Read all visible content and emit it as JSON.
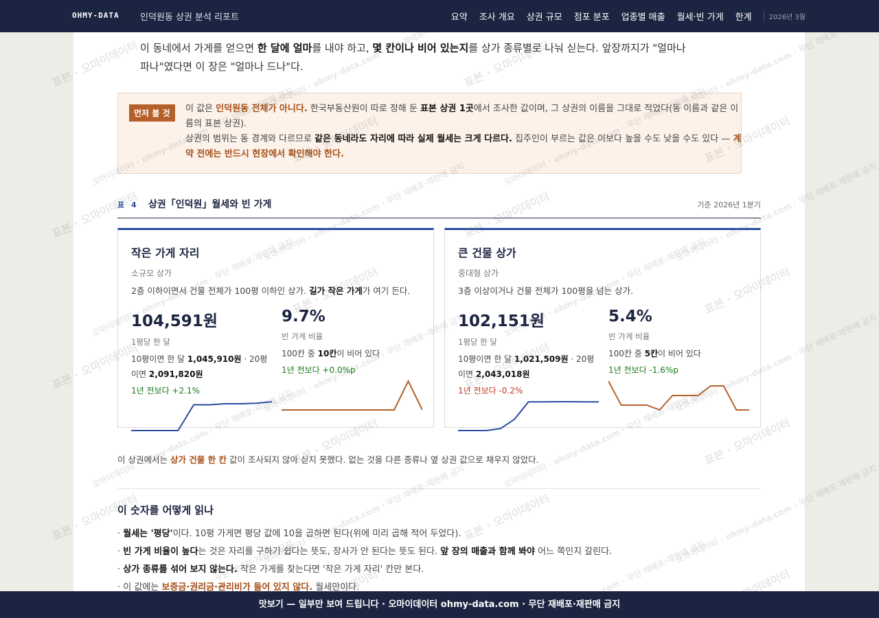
{
  "nav": {
    "brand": "OHMY-DATA",
    "subtitle": "인덕원동 상권 분석 리포트",
    "items": [
      "요약",
      "조사 개요",
      "상권 규모",
      "점포 분포",
      "업종별 매출",
      "월세·빈 가게",
      "한계"
    ],
    "date": "2026년 3월"
  },
  "intro": [
    "이 동네에서 가게를 얻으면 ",
    "한 달에 얼마",
    "를 내야 하고, ",
    "몇 칸이나 비어 있는지",
    "를 상가 종류별로 나눠 싣는다. 앞장까지가 \"얼마나 파나\"였다면 이 장은 \"얼마나 드나\"다."
  ],
  "note": {
    "badge": "먼저 볼 것",
    "p1": [
      "이 값은 ",
      "인덕원동 전체가 아니다.",
      " 한국부동산원이 따로 정해 둔 ",
      "표본 상권 1곳",
      "에서 조사한 값이며, 그 상권의 이름을 그대로 적었다(동 이름과 같은 이름의 표본 상권)."
    ],
    "p2": [
      "상권의 범위는 동 경계와 다르므로 ",
      "같은 동네라도 자리에 따라 실제 월세는 크게 다르다.",
      " 집주인이 부르는 값은 이보다 높을 수도 낮을 수도 있다 — ",
      "계약 전에는 반드시 현장에서 확인해야 한다."
    ]
  },
  "table": {
    "label": "표 4",
    "title": "상권「인덕원」월세와 빈 가게",
    "basis": "기준 2026년 1분기"
  },
  "cards": [
    {
      "title": "작은 가게 자리",
      "sub": "소규모 상가",
      "desc": [
        "2층 이하이면서 건물 전체가 100평 이하인 상가. ",
        "길가 작은 가게",
        "가 여기 든다."
      ],
      "rent": {
        "value": "104,591원",
        "label": "1평당 한 달",
        "detail": [
          "10평이면 한 달 ",
          "1,045,910원",
          " · 20평이면 ",
          "2,091,820원"
        ],
        "change": "1년 전보다 +2.1%",
        "spark": {
          "color": "#2a4aa0",
          "values": [
            101900,
            101900,
            101900,
            101900,
            104300,
            104300,
            104400,
            104400,
            104450,
            104591
          ]
        }
      },
      "vacancy": {
        "value": "9.7%",
        "label": "빈 가게 비율",
        "detail": [
          "100칸 중 ",
          "10칸",
          "이 비어 있다"
        ],
        "change": "1년 전보다 +0.0%p",
        "spark": {
          "color": "#b5602a",
          "values": [
            9.7,
            9.7,
            9.7,
            9.7,
            9.7,
            9.7,
            9.7,
            9.7,
            9.7,
            12.4,
            9.7
          ]
        }
      }
    },
    {
      "title": "큰 건물 상가",
      "sub": "중대형 상가",
      "desc": [
        "3층 이상이거나 건물 전체가 100평을 넘는 상가."
      ],
      "rent": {
        "value": "102,151원",
        "label": "1평당 한 달",
        "detail": [
          "10평이면 한 달 ",
          "1,021,509원",
          " · 20평이면 ",
          "2,043,018원"
        ],
        "change": "1년 전보다 -0.2%",
        "spark": {
          "color": "#2a4aa0",
          "values": [
            100600,
            100600,
            100600,
            100700,
            101200,
            102150,
            102150,
            102160,
            102160,
            102150,
            102151
          ]
        }
      },
      "vacancy": {
        "value": "5.4%",
        "label": "빈 가게 비율",
        "detail": [
          "100칸 중 ",
          "5칸",
          "이 비어 있다"
        ],
        "change": "1년 전보다 -1.6%p",
        "spark": {
          "color": "#b5602a",
          "values": [
            7.8,
            5.8,
            5.8,
            5.8,
            5.4,
            6.6,
            6.6,
            6.6,
            7.4,
            7.4,
            5.4,
            5.4
          ]
        }
      }
    }
  ],
  "footnote": [
    "이 상권에서는 ",
    "상가 건물 한 칸",
    " 값이 조사되지 않아 싣지 못했다. 없는 것을 다른 종류나 옆 상권 값으로 채우지 않았다."
  ],
  "howto": {
    "title": "이 숫자를 어떻게 읽나",
    "items": [
      [
        "· ",
        "월세는 '평당'",
        "이다. 10평 가게면 평당 값에 10을 곱하면 된다(위에 미리 곱해 적어 두었다)."
      ],
      [
        "· ",
        "빈 가게 비율이 높다",
        "는 것은 자리를 구하기 쉽다는 뜻도, 장사가 안 된다는 뜻도 된다. ",
        "앞 장의 매출과 함께 봐야",
        " 어느 쪽인지 갈린다."
      ],
      [
        "· ",
        "상가 종류를 섞어 보지 않는다.",
        " 작은 가게를 찾는다면 '작은 가게 자리' 칸만 본다."
      ],
      [
        "· 이 값에는 ",
        "보증금·권리금·관리비가 들어 있지 않다.",
        " 월세만이다."
      ]
    ]
  },
  "footer": "맛보기 — 일부만 보여 드립니다 · 오마이데이터 ohmy-data.com · 무단 재배포·재판매 금지",
  "watermarks": [
    "표본 · 오마이데이터",
    "오마이데이터 · ohmy-data.com · 무단 재배포·재판매 금지"
  ]
}
